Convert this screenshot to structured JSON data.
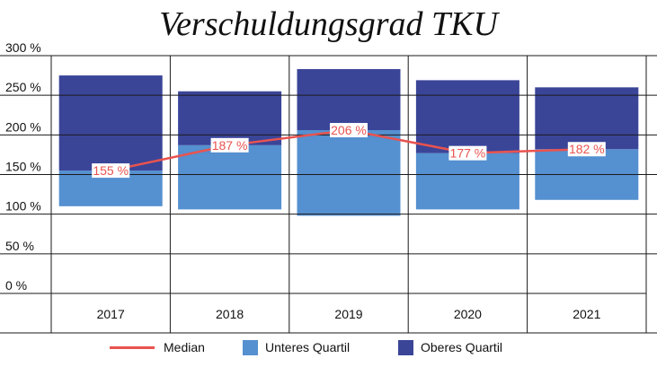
{
  "chart_data": {
    "type": "bar",
    "title": "Verschuldungsgrad TKU",
    "categories": [
      "2017",
      "2018",
      "2019",
      "2020",
      "2021"
    ],
    "ylim": [
      0,
      300
    ],
    "yticks": [
      "0 %",
      "50 %",
      "100 %",
      "150 %",
      "200 %",
      "250 %",
      "300 %"
    ],
    "ytick_values": [
      0,
      50,
      100,
      150,
      200,
      250,
      300
    ],
    "grid": true,
    "legend_position": "bottom",
    "series": [
      {
        "name": "Unteres Quartil",
        "type": "bar",
        "low": [
          110,
          106,
          98,
          106,
          118
        ],
        "high": [
          155,
          187,
          206,
          177,
          182
        ],
        "color": "#5590d0"
      },
      {
        "name": "Oberes Quartil",
        "type": "bar",
        "low": [
          155,
          187,
          206,
          177,
          182
        ],
        "high": [
          275,
          255,
          283,
          269,
          260
        ],
        "color": "#3a4598"
      },
      {
        "name": "Median",
        "type": "line",
        "values": [
          155,
          187,
          206,
          177,
          182
        ],
        "labels": [
          "155 %",
          "187 %",
          "206 %",
          "177 %",
          "182 %"
        ],
        "color": "#e9534f"
      }
    ]
  },
  "legend": {
    "median": "Median",
    "lower": "Unteres Quartil",
    "upper": "Oberes Quartil"
  }
}
